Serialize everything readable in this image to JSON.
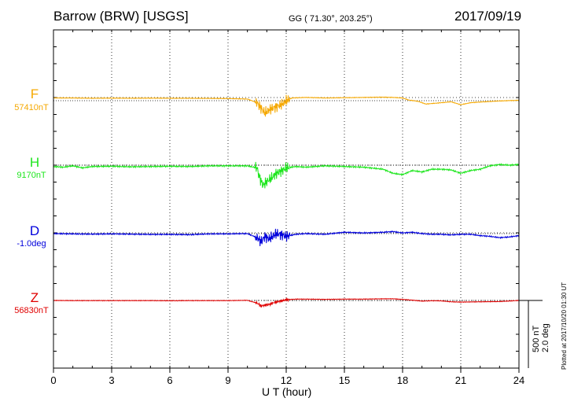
{
  "header": {
    "station": "Barrow (BRW)  [USGS]",
    "coords": "GG ( 71.30°, 203.25°)",
    "date": "2017/09/19"
  },
  "footer": {
    "plotted": "Plotted at 2017/10/20 01:30 UT",
    "scale_nt": "500 nT",
    "scale_deg": "2.0 deg"
  },
  "colors": {
    "F": "#f5a800",
    "H": "#1ee61e",
    "D": "#0000dc",
    "Z": "#e00000"
  },
  "chart_data": {
    "type": "line",
    "title": "Barrow (BRW)  [USGS]",
    "xlabel": "U T (hour)",
    "ylabel": "",
    "xlim": [
      0,
      24
    ],
    "x_ticks": [
      0,
      3,
      6,
      9,
      12,
      15,
      18,
      21,
      24
    ],
    "grid": true,
    "series": [
      {
        "name": "F",
        "baseline_label": "57410nT",
        "x": [
          0,
          1,
          2,
          3,
          4,
          5,
          6,
          7,
          8,
          9,
          10,
          10.5,
          10.7,
          10.9,
          11.1,
          11.3,
          11.5,
          11.8,
          12,
          12.3,
          13,
          14,
          15,
          16,
          17,
          17.5,
          18,
          18.3,
          18.8,
          19.2,
          20,
          20.5,
          21,
          21.5,
          22,
          23,
          24
        ],
        "y": [
          20,
          20,
          18,
          19,
          18,
          19,
          18,
          18,
          17,
          16,
          12,
          -15,
          -55,
          -90,
          -70,
          -55,
          -45,
          -25,
          0,
          20,
          24,
          20,
          22,
          24,
          26,
          24,
          20,
          5,
          -5,
          -25,
          -15,
          -8,
          -30,
          -15,
          -10,
          -2,
          3
        ]
      },
      {
        "name": "H",
        "baseline_label": "9170nT",
        "x": [
          0,
          0.5,
          1,
          1.5,
          2,
          3,
          4,
          5,
          6,
          7,
          8,
          9,
          10,
          10.5,
          10.6,
          10.8,
          11,
          11.2,
          11.5,
          11.8,
          12,
          12.5,
          13,
          14,
          15,
          16,
          17,
          17.5,
          18,
          18.5,
          19,
          19.5,
          20,
          20.5,
          21,
          21.5,
          22,
          22.5,
          23,
          23.5,
          24
        ],
        "y": [
          -10,
          -15,
          -5,
          -20,
          -10,
          -8,
          -12,
          -10,
          -8,
          -10,
          -5,
          -5,
          -5,
          -20,
          -80,
          -150,
          -120,
          -100,
          -60,
          -40,
          -20,
          -10,
          -15,
          -5,
          -10,
          -15,
          -30,
          -60,
          -70,
          -40,
          -50,
          -30,
          -30,
          -35,
          -60,
          -40,
          -30,
          -5,
          5,
          0,
          5
        ]
      },
      {
        "name": "D",
        "baseline_label": "-1.0deg",
        "x": [
          0,
          1,
          2,
          3,
          4,
          5,
          6,
          7,
          8,
          9,
          10,
          10.5,
          10.7,
          10.9,
          11.1,
          11.3,
          11.5,
          11.8,
          12,
          12.5,
          13,
          14,
          15,
          16,
          17,
          17.5,
          18,
          18.5,
          19,
          19.5,
          20,
          20.5,
          21,
          21.5,
          22,
          22.5,
          23,
          23.5,
          24
        ],
        "y": [
          0,
          -2,
          -4,
          -2,
          -4,
          -6,
          -6,
          -8,
          -2,
          -2,
          0,
          -30,
          -60,
          -20,
          -40,
          -20,
          0,
          -10,
          -20,
          -5,
          0,
          -5,
          10,
          5,
          10,
          15,
          5,
          10,
          0,
          -5,
          -5,
          -10,
          -5,
          -5,
          -15,
          -20,
          -30,
          -25,
          -15
        ]
      },
      {
        "name": "Z",
        "baseline_label": "56830nT",
        "x": [
          0,
          1,
          2,
          3,
          4,
          5,
          6,
          7,
          8,
          9,
          10,
          10.5,
          10.7,
          10.9,
          11.1,
          11.3,
          11.5,
          11.8,
          12,
          12.5,
          13,
          14,
          15,
          16,
          17,
          17.5,
          18,
          18.5,
          19,
          19.5,
          20,
          20.5,
          21,
          22,
          23,
          24
        ],
        "y": [
          0,
          -1,
          -1,
          -1,
          -1,
          -1,
          -2,
          -1,
          -1,
          -1,
          1,
          -20,
          -40,
          -35,
          -30,
          -20,
          -10,
          -2,
          5,
          10,
          10,
          8,
          10,
          10,
          12,
          12,
          8,
          2,
          -5,
          -2,
          -3,
          -10,
          -12,
          -10,
          -8,
          0
        ]
      }
    ]
  }
}
